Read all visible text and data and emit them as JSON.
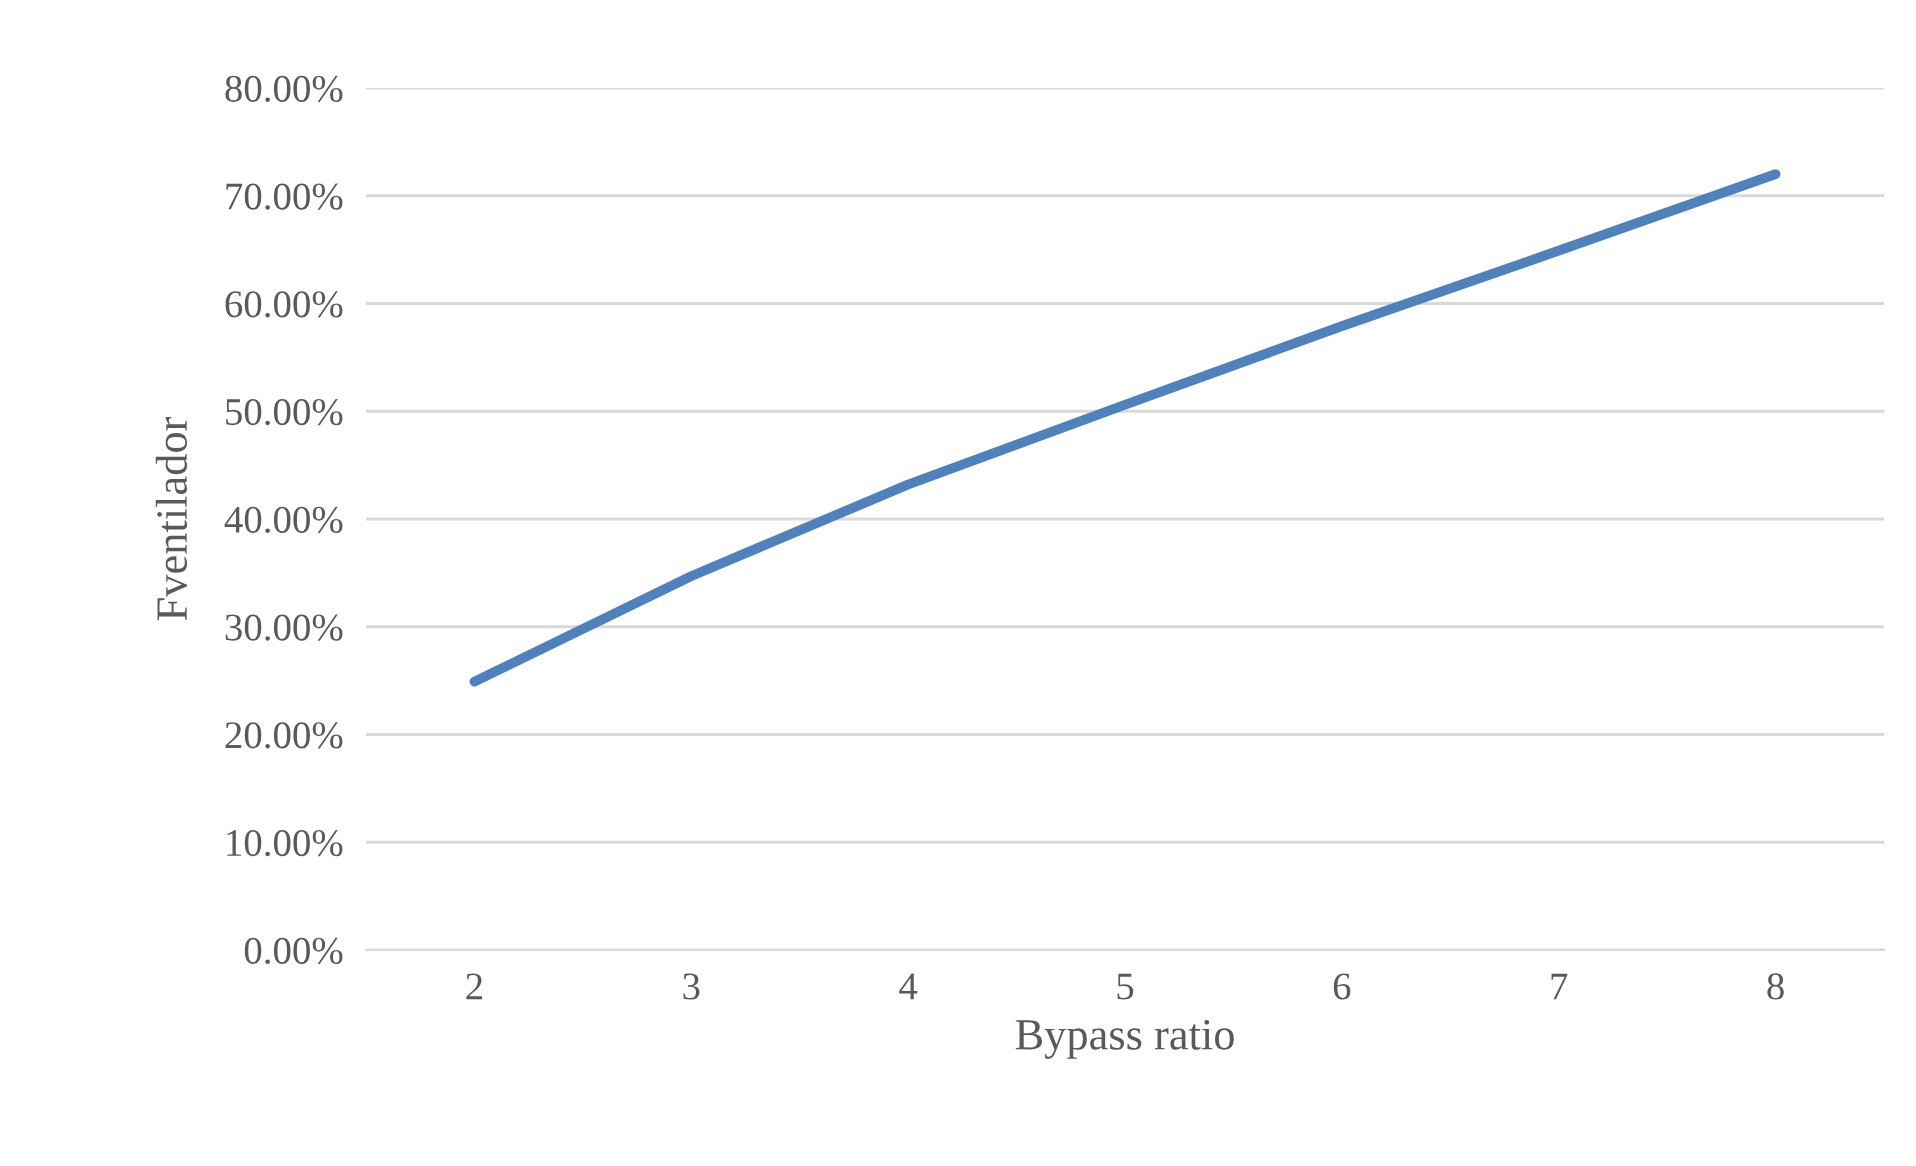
{
  "chart_data": {
    "type": "line",
    "xlabel": "Bypass ratio",
    "ylabel": "Fventilador",
    "categories": [
      "2",
      "3",
      "4",
      "5",
      "6",
      "7",
      "8"
    ],
    "series": [
      {
        "color": "#4f81bd",
        "values": [
          24.9,
          34.7,
          43.2,
          50.6,
          57.9,
          64.9,
          72.0
        ]
      }
    ],
    "ylim": [
      0,
      80
    ],
    "yticks": [
      {
        "value": 0,
        "label": "0.00%"
      },
      {
        "value": 10,
        "label": "10.00%"
      },
      {
        "value": 20,
        "label": "20.00%"
      },
      {
        "value": 30,
        "label": "30.00%"
      },
      {
        "value": 40,
        "label": "40.00%"
      },
      {
        "value": 50,
        "label": "50.00%"
      },
      {
        "value": 60,
        "label": "60.00%"
      },
      {
        "value": 70,
        "label": "70.00%"
      },
      {
        "value": 80,
        "label": "80.00%"
      }
    ],
    "grid": "y",
    "marker": "none",
    "line_style": "solid",
    "legend": false
  }
}
